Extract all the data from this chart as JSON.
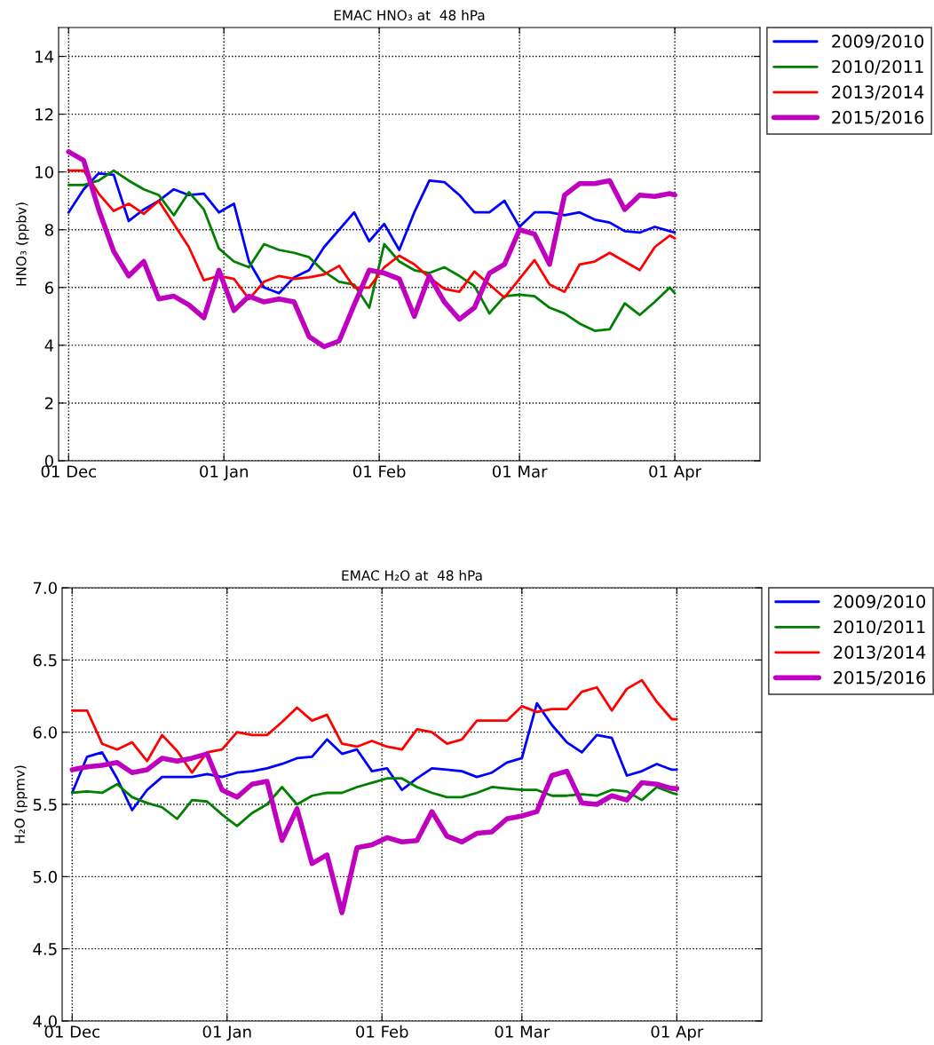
{
  "chart_data": [
    {
      "type": "line",
      "title": "EMAC HNO₃ at  48 hPa",
      "ylabel": "HNO₃ (ppbv)",
      "x": [
        "2009-12-01",
        "2009-12-04",
        "2009-12-07",
        "2009-12-10",
        "2009-12-13",
        "2009-12-16",
        "2009-12-19",
        "2009-12-22",
        "2009-12-25",
        "2009-12-28",
        "2009-12-31",
        "2010-01-03",
        "2010-01-06",
        "2010-01-09",
        "2010-01-12",
        "2010-01-15",
        "2010-01-18",
        "2010-01-21",
        "2010-01-24",
        "2010-01-27",
        "2010-01-30",
        "2010-02-02",
        "2010-02-05",
        "2010-02-08",
        "2010-02-11",
        "2010-02-14",
        "2010-02-17",
        "2010-02-20",
        "2010-02-23",
        "2010-02-26",
        "2010-03-01",
        "2010-03-04",
        "2010-03-07",
        "2010-03-10",
        "2010-03-13",
        "2010-03-16",
        "2010-03-19",
        "2010-03-22",
        "2010-03-25",
        "2010-03-28",
        "2010-03-31",
        "2010-04-01"
      ],
      "series": [
        {
          "name": "2009/2010",
          "color": "#0000ff",
          "values": [
            8.6,
            9.4,
            9.95,
            9.9,
            8.3,
            8.7,
            9.0,
            9.4,
            9.2,
            9.25,
            8.6,
            8.9,
            6.9,
            6.0,
            5.8,
            6.35,
            6.6,
            7.4,
            8.0,
            8.6,
            7.6,
            8.2,
            7.3,
            8.6,
            9.7,
            9.65,
            9.2,
            8.6,
            8.6,
            9.0,
            8.1,
            8.6,
            8.6,
            8.5,
            8.6,
            8.35,
            8.25,
            7.95,
            7.9,
            8.1,
            7.95,
            7.9
          ]
        },
        {
          "name": "2010/2011",
          "color": "#008000",
          "values": [
            9.55,
            9.55,
            9.7,
            10.05,
            9.7,
            9.4,
            9.2,
            8.5,
            9.3,
            8.7,
            7.35,
            6.9,
            6.7,
            7.5,
            7.3,
            7.2,
            7.05,
            6.55,
            6.2,
            6.1,
            5.3,
            7.5,
            6.9,
            6.6,
            6.5,
            6.7,
            6.4,
            6.05,
            5.1,
            5.7,
            5.75,
            5.7,
            5.3,
            5.1,
            4.75,
            4.5,
            4.55,
            5.45,
            5.05,
            5.5,
            6.0,
            5.8
          ]
        },
        {
          "name": "2013/2014",
          "color": "#ff0000",
          "values": [
            10.05,
            10.05,
            9.25,
            8.65,
            8.9,
            8.55,
            9.0,
            8.2,
            7.4,
            6.25,
            6.4,
            6.3,
            5.6,
            6.2,
            6.4,
            6.3,
            6.35,
            6.45,
            6.75,
            6.0,
            6.0,
            6.7,
            7.1,
            6.8,
            6.35,
            5.95,
            5.85,
            6.55,
            6.1,
            5.65,
            6.3,
            6.95,
            6.1,
            5.85,
            6.8,
            6.9,
            7.2,
            6.9,
            6.6,
            7.4,
            7.8,
            7.7
          ]
        },
        {
          "name": "2015/2016",
          "color": "#bf00bf",
          "values": [
            10.7,
            10.4,
            8.7,
            7.25,
            6.4,
            6.9,
            5.6,
            5.7,
            5.4,
            4.95,
            6.6,
            5.2,
            5.7,
            5.5,
            5.6,
            5.5,
            4.3,
            3.95,
            4.15,
            5.4,
            6.6,
            6.5,
            6.3,
            5.0,
            6.4,
            5.5,
            4.9,
            5.3,
            6.5,
            6.8,
            8.0,
            7.85,
            6.8,
            9.2,
            9.6,
            9.6,
            9.7,
            8.7,
            9.2,
            9.15,
            9.25,
            9.2
          ]
        }
      ],
      "xlim": [
        "2009-11-29",
        "2010-04-18"
      ],
      "xticks": [
        {
          "value": "2009-12-01",
          "label": "01 Dec"
        },
        {
          "value": "2010-01-01",
          "label": "01 Jan"
        },
        {
          "value": "2010-02-01",
          "label": "01 Feb"
        },
        {
          "value": "2010-03-01",
          "label": "01 Mar"
        },
        {
          "value": "2010-04-01",
          "label": "01 Apr"
        }
      ],
      "ylim": [
        0,
        15
      ],
      "yticks": [
        {
          "value": 0,
          "label": "0"
        },
        {
          "value": 2,
          "label": "2"
        },
        {
          "value": 4,
          "label": "4"
        },
        {
          "value": 6,
          "label": "6"
        },
        {
          "value": 8,
          "label": "8"
        },
        {
          "value": 10,
          "label": "10"
        },
        {
          "value": 12,
          "label": "12"
        },
        {
          "value": 14,
          "label": "14"
        }
      ],
      "grid": true,
      "legend": "top right",
      "line_style": "solid"
    },
    {
      "type": "line",
      "title": "EMAC H₂O at  48 hPa",
      "ylabel": "H₂O (ppmv)",
      "x": [
        "2009-12-01",
        "2009-12-04",
        "2009-12-07",
        "2009-12-10",
        "2009-12-13",
        "2009-12-16",
        "2009-12-19",
        "2009-12-22",
        "2009-12-25",
        "2009-12-28",
        "2009-12-31",
        "2010-01-03",
        "2010-01-06",
        "2010-01-09",
        "2010-01-12",
        "2010-01-15",
        "2010-01-18",
        "2010-01-21",
        "2010-01-24",
        "2010-01-27",
        "2010-01-30",
        "2010-02-02",
        "2010-02-05",
        "2010-02-08",
        "2010-02-11",
        "2010-02-14",
        "2010-02-17",
        "2010-02-20",
        "2010-02-23",
        "2010-02-26",
        "2010-03-01",
        "2010-03-04",
        "2010-03-07",
        "2010-03-10",
        "2010-03-13",
        "2010-03-16",
        "2010-03-19",
        "2010-03-22",
        "2010-03-25",
        "2010-03-28",
        "2010-03-31",
        "2010-04-01"
      ],
      "series": [
        {
          "name": "2009/2010",
          "color": "#0000ff",
          "values": [
            5.58,
            5.83,
            5.86,
            5.68,
            5.46,
            5.6,
            5.69,
            5.69,
            5.69,
            5.71,
            5.69,
            5.72,
            5.73,
            5.75,
            5.78,
            5.82,
            5.83,
            5.95,
            5.85,
            5.88,
            5.73,
            5.75,
            5.6,
            5.68,
            5.75,
            5.74,
            5.73,
            5.69,
            5.72,
            5.79,
            5.82,
            6.2,
            6.05,
            5.93,
            5.86,
            5.98,
            5.96,
            5.7,
            5.73,
            5.78,
            5.74,
            5.74
          ]
        },
        {
          "name": "2010/2011",
          "color": "#008000",
          "values": [
            5.58,
            5.59,
            5.58,
            5.64,
            5.55,
            5.51,
            5.48,
            5.4,
            5.53,
            5.52,
            5.43,
            5.35,
            5.44,
            5.5,
            5.62,
            5.5,
            5.56,
            5.58,
            5.58,
            5.62,
            5.65,
            5.68,
            5.68,
            5.62,
            5.58,
            5.55,
            5.55,
            5.58,
            5.62,
            5.61,
            5.6,
            5.6,
            5.56,
            5.56,
            5.57,
            5.56,
            5.6,
            5.59,
            5.53,
            5.62,
            5.58,
            5.57
          ]
        },
        {
          "name": "2013/2014",
          "color": "#ff0000",
          "values": [
            6.15,
            6.15,
            5.92,
            5.88,
            5.93,
            5.8,
            5.98,
            5.87,
            5.72,
            5.86,
            5.88,
            6.0,
            5.98,
            5.98,
            6.07,
            6.17,
            6.08,
            6.12,
            5.92,
            5.9,
            5.94,
            5.9,
            5.88,
            6.02,
            6.0,
            5.92,
            5.95,
            6.08,
            6.08,
            6.08,
            6.18,
            6.14,
            6.16,
            6.16,
            6.28,
            6.31,
            6.15,
            6.3,
            6.36,
            6.21,
            6.09,
            6.09
          ]
        },
        {
          "name": "2015/2016",
          "color": "#bf00bf",
          "values": [
            5.74,
            5.76,
            5.77,
            5.79,
            5.72,
            5.74,
            5.82,
            5.8,
            5.82,
            5.85,
            5.6,
            5.55,
            5.64,
            5.66,
            5.25,
            5.47,
            5.09,
            5.15,
            4.75,
            5.2,
            5.22,
            5.27,
            5.24,
            5.25,
            5.45,
            5.28,
            5.24,
            5.3,
            5.31,
            5.4,
            5.42,
            5.45,
            5.7,
            5.73,
            5.51,
            5.5,
            5.56,
            5.53,
            5.65,
            5.64,
            5.61,
            5.61
          ]
        }
      ],
      "xlim": [
        "2009-11-29",
        "2010-04-18"
      ],
      "xticks": [
        {
          "value": "2009-12-01",
          "label": "01 Dec"
        },
        {
          "value": "2010-01-01",
          "label": "01 Jan"
        },
        {
          "value": "2010-02-01",
          "label": "01 Feb"
        },
        {
          "value": "2010-03-01",
          "label": "01 Mar"
        },
        {
          "value": "2010-04-01",
          "label": "01 Apr"
        }
      ],
      "ylim": [
        4.0,
        7.0
      ],
      "yticks": [
        {
          "value": 4.0,
          "label": "4.0"
        },
        {
          "value": 4.5,
          "label": "4.5"
        },
        {
          "value": 5.0,
          "label": "5.0"
        },
        {
          "value": 5.5,
          "label": "5.5"
        },
        {
          "value": 6.0,
          "label": "6.0"
        },
        {
          "value": 6.5,
          "label": "6.5"
        },
        {
          "value": 7.0,
          "label": "7.0"
        }
      ],
      "grid": true,
      "legend": "top right",
      "line_style": "solid"
    }
  ]
}
